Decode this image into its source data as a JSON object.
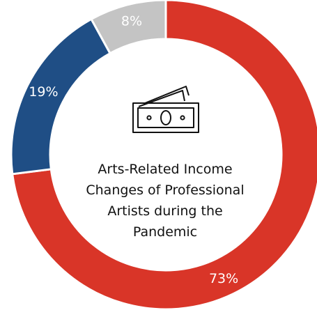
{
  "chart_data": {
    "type": "pie",
    "donut": true,
    "title": "Arts-Related Income Changes of Professional Artists during the Pandemic",
    "title_lines": [
      "Arts-Related Income",
      "Changes of Professional",
      "Artists during the",
      "Pandemic"
    ],
    "center_icon": "money-bills-icon",
    "slices": [
      {
        "value": 73,
        "label": "73%",
        "color": "#d93528"
      },
      {
        "value": 19,
        "label": "19%",
        "color": "#1f4e85"
      },
      {
        "value": 8,
        "label": "8%",
        "color": "#c4c4c4"
      }
    ],
    "start": "12 o'clock, clockwise"
  }
}
